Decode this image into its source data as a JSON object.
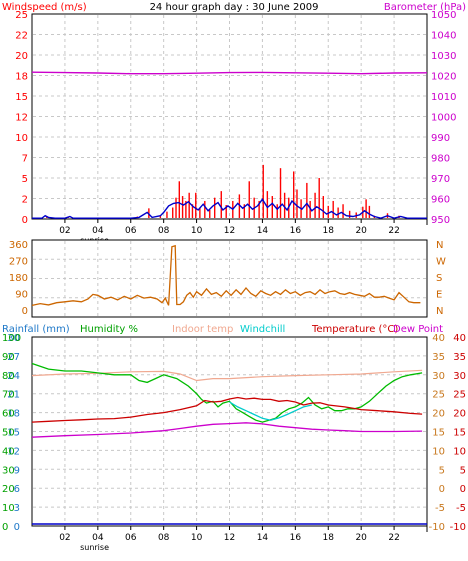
{
  "title": "24 hour graph day : 30 June 2009",
  "colors": {
    "grid": "#c8c8c8",
    "wind": "#ff0000",
    "gust": "#0000cc",
    "baro": "#cc00cc",
    "dir": "#cc6600",
    "rain": "#0000cc",
    "humidity": "#00bb00",
    "indoor": "#f0a890",
    "windchill": "#00cccc",
    "temperature": "#cc0000",
    "dewpoint": "#cc00cc",
    "baroAxis": "#cc00cc",
    "rainAxis": "#1e78c8",
    "humAxis": "#00a000",
    "dewAxis": "#c8781e",
    "tempAxis": "#cc0000"
  },
  "x_ticks": [
    "02",
    "04",
    "06",
    "08",
    "10",
    "12",
    "14",
    "16",
    "18",
    "20",
    "22"
  ],
  "x_sublabel": "sunrise",
  "chart_data": [
    {
      "type": "bar",
      "title": "24 hour graph day : 30 June 2009",
      "ylabel_left": "Windspeed (m/s)",
      "ylabel_right": "Barometer (hPa)",
      "xlim": [
        0,
        24
      ],
      "ylim_left": [
        0,
        25
      ],
      "ylim_right": [
        950,
        1050
      ],
      "left_ticks": [
        "0",
        "2",
        "5",
        "7",
        "10",
        "12",
        "15",
        "18",
        "20",
        "22",
        "25"
      ],
      "right_ticks": [
        "950",
        "960",
        "970",
        "980",
        "990",
        "1000",
        "1010",
        "1020",
        "1030",
        "1040",
        "1050"
      ],
      "wind_bars": [
        [
          0.9,
          0.3
        ],
        [
          2.2,
          0.2
        ],
        [
          6.4,
          0.3
        ],
        [
          7.1,
          1.3
        ],
        [
          7.8,
          0.4
        ],
        [
          8.2,
          0.9
        ],
        [
          8.55,
          1.4
        ],
        [
          8.75,
          2.6
        ],
        [
          8.95,
          4.6
        ],
        [
          9.15,
          2.8
        ],
        [
          9.35,
          2.2
        ],
        [
          9.55,
          3.2
        ],
        [
          9.75,
          1.8
        ],
        [
          9.95,
          3.2
        ],
        [
          10.2,
          1.4
        ],
        [
          10.5,
          2.2
        ],
        [
          10.8,
          1.1
        ],
        [
          11.1,
          2.6
        ],
        [
          11.5,
          3.4
        ],
        [
          11.8,
          1.7
        ],
        [
          12.2,
          2.2
        ],
        [
          12.6,
          3.0
        ],
        [
          12.9,
          1.8
        ],
        [
          13.2,
          4.6
        ],
        [
          13.5,
          2.6
        ],
        [
          13.8,
          2.2
        ],
        [
          14.05,
          6.6
        ],
        [
          14.3,
          3.4
        ],
        [
          14.6,
          2.8
        ],
        [
          14.9,
          1.8
        ],
        [
          15.1,
          6.2
        ],
        [
          15.35,
          3.2
        ],
        [
          15.6,
          2.6
        ],
        [
          15.9,
          5.8
        ],
        [
          16.1,
          3.6
        ],
        [
          16.35,
          2.4
        ],
        [
          16.7,
          4.4
        ],
        [
          16.9,
          2.2
        ],
        [
          17.2,
          3.2
        ],
        [
          17.45,
          5.0
        ],
        [
          17.7,
          2.8
        ],
        [
          18.0,
          1.6
        ],
        [
          18.3,
          2.2
        ],
        [
          18.6,
          1.4
        ],
        [
          18.9,
          1.8
        ],
        [
          19.3,
          1.0
        ],
        [
          19.7,
          0.8
        ],
        [
          20.1,
          1.5
        ],
        [
          20.3,
          2.4
        ],
        [
          20.5,
          1.6
        ],
        [
          20.8,
          0.4
        ],
        [
          21.6,
          0.7
        ],
        [
          22.3,
          0.4
        ]
      ],
      "gust_line": [
        [
          0,
          0.1
        ],
        [
          0.6,
          0.1
        ],
        [
          0.8,
          0.4
        ],
        [
          1.0,
          0.2
        ],
        [
          1.4,
          0.1
        ],
        [
          2.0,
          0.1
        ],
        [
          2.3,
          0.3
        ],
        [
          2.5,
          0.1
        ],
        [
          6.0,
          0.1
        ],
        [
          6.5,
          0.2
        ],
        [
          7.0,
          0.8
        ],
        [
          7.3,
          0.2
        ],
        [
          7.8,
          0.4
        ],
        [
          8.0,
          0.8
        ],
        [
          8.3,
          1.6
        ],
        [
          8.6,
          1.9
        ],
        [
          8.9,
          2.0
        ],
        [
          9.2,
          1.7
        ],
        [
          9.5,
          2.1
        ],
        [
          9.8,
          1.5
        ],
        [
          10.1,
          1.1
        ],
        [
          10.4,
          1.8
        ],
        [
          10.7,
          1.0
        ],
        [
          11.0,
          1.6
        ],
        [
          11.3,
          2.0
        ],
        [
          11.6,
          1.1
        ],
        [
          11.9,
          1.6
        ],
        [
          12.2,
          1.2
        ],
        [
          12.5,
          1.9
        ],
        [
          12.8,
          1.3
        ],
        [
          13.1,
          1.8
        ],
        [
          13.4,
          1.2
        ],
        [
          13.7,
          1.6
        ],
        [
          14.0,
          2.4
        ],
        [
          14.3,
          1.4
        ],
        [
          14.6,
          1.9
        ],
        [
          14.9,
          1.2
        ],
        [
          15.2,
          1.8
        ],
        [
          15.5,
          1.1
        ],
        [
          15.8,
          2.2
        ],
        [
          16.1,
          1.6
        ],
        [
          16.4,
          1.2
        ],
        [
          16.7,
          1.9
        ],
        [
          17.0,
          1.0
        ],
        [
          17.3,
          1.5
        ],
        [
          17.6,
          1.1
        ],
        [
          17.9,
          0.6
        ],
        [
          18.2,
          0.9
        ],
        [
          18.5,
          0.5
        ],
        [
          18.8,
          0.8
        ],
        [
          19.1,
          0.4
        ],
        [
          19.5,
          0.3
        ],
        [
          19.9,
          0.5
        ],
        [
          20.2,
          1.0
        ],
        [
          20.5,
          0.6
        ],
        [
          20.8,
          0.3
        ],
        [
          21.2,
          0.1
        ],
        [
          21.6,
          0.4
        ],
        [
          22.0,
          0.1
        ],
        [
          22.4,
          0.3
        ],
        [
          22.8,
          0.1
        ],
        [
          24,
          0.1
        ]
      ],
      "baro_line": [
        [
          0,
          1021.6
        ],
        [
          2,
          1021.4
        ],
        [
          4,
          1021.2
        ],
        [
          6,
          1020.9
        ],
        [
          8,
          1020.9
        ],
        [
          10,
          1021.1
        ],
        [
          12,
          1021.4
        ],
        [
          14,
          1021.5
        ],
        [
          16,
          1021.3
        ],
        [
          18,
          1021.1
        ],
        [
          20,
          1020.9
        ],
        [
          22,
          1021.2
        ],
        [
          24,
          1021.3
        ]
      ]
    },
    {
      "type": "line",
      "xlim": [
        0,
        24
      ],
      "ylim_left": [
        0,
        360
      ],
      "left_ticks": [
        "0",
        "90",
        "180",
        "270",
        "360"
      ],
      "right_labels": [
        "N",
        "W",
        "S",
        "E",
        "N"
      ],
      "dir_line": [
        [
          0,
          25
        ],
        [
          0.5,
          35
        ],
        [
          1.0,
          28
        ],
        [
          1.5,
          40
        ],
        [
          2.0,
          45
        ],
        [
          2.5,
          50
        ],
        [
          3.0,
          45
        ],
        [
          3.4,
          60
        ],
        [
          3.7,
          85
        ],
        [
          4.0,
          80
        ],
        [
          4.4,
          60
        ],
        [
          4.8,
          70
        ],
        [
          5.2,
          55
        ],
        [
          5.6,
          75
        ],
        [
          6.0,
          60
        ],
        [
          6.4,
          80
        ],
        [
          6.8,
          65
        ],
        [
          7.2,
          70
        ],
        [
          7.6,
          60
        ],
        [
          7.9,
          40
        ],
        [
          8.1,
          65
        ],
        [
          8.3,
          25
        ],
        [
          8.5,
          345
        ],
        [
          8.7,
          350
        ],
        [
          8.8,
          30
        ],
        [
          9.0,
          30
        ],
        [
          9.2,
          45
        ],
        [
          9.4,
          80
        ],
        [
          9.6,
          95
        ],
        [
          9.8,
          70
        ],
        [
          10.0,
          100
        ],
        [
          10.3,
          80
        ],
        [
          10.6,
          115
        ],
        [
          10.9,
          85
        ],
        [
          11.2,
          95
        ],
        [
          11.5,
          75
        ],
        [
          11.8,
          105
        ],
        [
          12.1,
          80
        ],
        [
          12.4,
          110
        ],
        [
          12.7,
          85
        ],
        [
          13.0,
          120
        ],
        [
          13.3,
          90
        ],
        [
          13.6,
          75
        ],
        [
          13.9,
          105
        ],
        [
          14.2,
          90
        ],
        [
          14.5,
          80
        ],
        [
          14.8,
          100
        ],
        [
          15.1,
          85
        ],
        [
          15.4,
          110
        ],
        [
          15.7,
          90
        ],
        [
          16.0,
          100
        ],
        [
          16.3,
          80
        ],
        [
          16.6,
          95
        ],
        [
          16.9,
          100
        ],
        [
          17.2,
          85
        ],
        [
          17.5,
          110
        ],
        [
          17.8,
          90
        ],
        [
          18.1,
          100
        ],
        [
          18.4,
          105
        ],
        [
          18.7,
          90
        ],
        [
          19.0,
          85
        ],
        [
          19.3,
          95
        ],
        [
          19.6,
          85
        ],
        [
          19.9,
          80
        ],
        [
          20.2,
          75
        ],
        [
          20.5,
          90
        ],
        [
          20.8,
          70
        ],
        [
          21.1,
          70
        ],
        [
          21.4,
          75
        ],
        [
          21.7,
          65
        ],
        [
          22.0,
          55
        ],
        [
          22.3,
          95
        ],
        [
          22.6,
          70
        ],
        [
          22.9,
          45
        ],
        [
          23.2,
          40
        ],
        [
          23.6,
          40
        ]
      ]
    },
    {
      "type": "line",
      "xlim": [
        0,
        24
      ],
      "legend": [
        "Rainfall (mm)",
        "Humidity %",
        "Indoor temp",
        "Windchill",
        "Temperature (°C)",
        "Dew Point"
      ],
      "rain_ticks": [
        "0",
        "3",
        "6",
        "9",
        "12",
        "15",
        "18",
        "21",
        "24",
        "27",
        "30"
      ],
      "hum_ticks": [
        "0",
        "10",
        "20",
        "30",
        "40",
        "50",
        "60",
        "70",
        "80",
        "90",
        "100"
      ],
      "dew_ticks": [
        "-10",
        "-5",
        "0",
        "5",
        "10",
        "15",
        "20",
        "25",
        "30",
        "35",
        "40"
      ],
      "temp_ticks": [
        "-10",
        "-5",
        "0",
        "5",
        "10",
        "15",
        "20",
        "25",
        "30",
        "35",
        "40"
      ],
      "temp_scale": [
        -10,
        40
      ],
      "hum_scale": [
        0,
        100
      ],
      "rain_line": [
        [
          0,
          0.0
        ],
        [
          24,
          0.0
        ]
      ],
      "humidity_line": [
        [
          0,
          86
        ],
        [
          1,
          83
        ],
        [
          2,
          82
        ],
        [
          3,
          82
        ],
        [
          4,
          81
        ],
        [
          5,
          80
        ],
        [
          6,
          80
        ],
        [
          6.5,
          77
        ],
        [
          7,
          76
        ],
        [
          7.5,
          78
        ],
        [
          8,
          80
        ],
        [
          8.8,
          78
        ],
        [
          9.5,
          74
        ],
        [
          10,
          70
        ],
        [
          10.3,
          67
        ],
        [
          10.6,
          65
        ],
        [
          11,
          66
        ],
        [
          11.3,
          63
        ],
        [
          11.6,
          65
        ],
        [
          12,
          66
        ],
        [
          12.4,
          62
        ],
        [
          12.8,
          60
        ],
        [
          13.2,
          58
        ],
        [
          13.6,
          56
        ],
        [
          14,
          55
        ],
        [
          14.4,
          56
        ],
        [
          14.8,
          57
        ],
        [
          15.2,
          60
        ],
        [
          15.6,
          62
        ],
        [
          16,
          63
        ],
        [
          16.4,
          65
        ],
        [
          16.8,
          68
        ],
        [
          17.2,
          64
        ],
        [
          17.6,
          62
        ],
        [
          18,
          63
        ],
        [
          18.4,
          61
        ],
        [
          18.8,
          61
        ],
        [
          19.2,
          62
        ],
        [
          19.6,
          62
        ],
        [
          20,
          63
        ],
        [
          20.5,
          66
        ],
        [
          21,
          70
        ],
        [
          21.5,
          74
        ],
        [
          22,
          77
        ],
        [
          22.5,
          79
        ],
        [
          23,
          80
        ],
        [
          23.7,
          81
        ]
      ],
      "indoor_line": [
        [
          0,
          29.8
        ],
        [
          2,
          30.2
        ],
        [
          4,
          30.4
        ],
        [
          6,
          30.8
        ],
        [
          8,
          30.9
        ],
        [
          9,
          30.2
        ],
        [
          10,
          28.5
        ],
        [
          11,
          29.0
        ],
        [
          12,
          29.0
        ],
        [
          14,
          29.5
        ],
        [
          16,
          29.8
        ],
        [
          18,
          30.0
        ],
        [
          20,
          30.2
        ],
        [
          22,
          30.8
        ],
        [
          23.7,
          31.2
        ]
      ],
      "temperature_line": [
        [
          0,
          17.5
        ],
        [
          1,
          17.7
        ],
        [
          2,
          17.9
        ],
        [
          3,
          18.1
        ],
        [
          4,
          18.3
        ],
        [
          5,
          18.4
        ],
        [
          6,
          18.8
        ],
        [
          7,
          19.5
        ],
        [
          8,
          20.0
        ],
        [
          9,
          20.8
        ],
        [
          10,
          21.8
        ],
        [
          10.5,
          23.2
        ],
        [
          11,
          22.8
        ],
        [
          11.5,
          23.0
        ],
        [
          12,
          23.6
        ],
        [
          12.5,
          24.0
        ],
        [
          13,
          23.6
        ],
        [
          13.5,
          23.8
        ],
        [
          14,
          23.5
        ],
        [
          14.5,
          23.5
        ],
        [
          15,
          23.0
        ],
        [
          15.5,
          23.2
        ],
        [
          16,
          22.8
        ],
        [
          16.5,
          22.0
        ],
        [
          17,
          22.5
        ],
        [
          17.5,
          22.6
        ],
        [
          18,
          22.0
        ],
        [
          19,
          21.5
        ],
        [
          20,
          20.8
        ],
        [
          21,
          20.5
        ],
        [
          22,
          20.2
        ],
        [
          23,
          19.8
        ],
        [
          23.7,
          19.6
        ]
      ],
      "windchill_line": [
        [
          12,
          22.8
        ],
        [
          12.5,
          21.5
        ],
        [
          13,
          20.5
        ],
        [
          13.5,
          19.5
        ],
        [
          14,
          18.5
        ],
        [
          14.5,
          18.0
        ],
        [
          15,
          18.6
        ],
        [
          15.5,
          19.5
        ],
        [
          16,
          20.5
        ],
        [
          16.5,
          21.5
        ],
        [
          17,
          22.0
        ]
      ],
      "dewpoint_line": [
        [
          0,
          13.5
        ],
        [
          2,
          13.9
        ],
        [
          4,
          14.2
        ],
        [
          6,
          14.6
        ],
        [
          8,
          15.2
        ],
        [
          9,
          15.8
        ],
        [
          10,
          16.4
        ],
        [
          11,
          16.9
        ],
        [
          12,
          17.1
        ],
        [
          13,
          17.3
        ],
        [
          14,
          17.0
        ],
        [
          15,
          16.4
        ],
        [
          16,
          16.0
        ],
        [
          17,
          15.6
        ],
        [
          18,
          15.4
        ],
        [
          19,
          15.2
        ],
        [
          20,
          15.0
        ],
        [
          22,
          15.0
        ],
        [
          23.7,
          15.1
        ]
      ]
    }
  ]
}
